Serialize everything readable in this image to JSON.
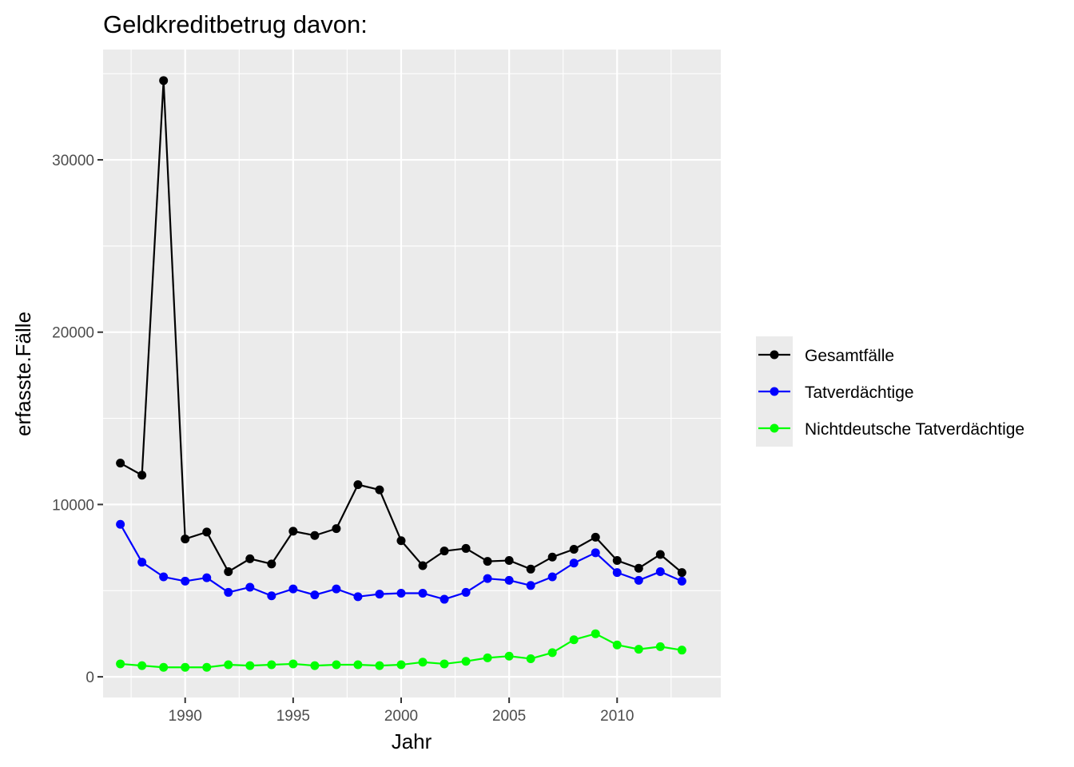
{
  "chart_data": {
    "type": "line",
    "title": "Geldkreditbetrug davon:",
    "xlabel": "Jahr",
    "ylabel": "erfasste.Fälle",
    "x": [
      1987,
      1988,
      1989,
      1990,
      1991,
      1992,
      1993,
      1994,
      1995,
      1996,
      1997,
      1998,
      1999,
      2000,
      2001,
      2002,
      2003,
      2004,
      2005,
      2006,
      2007,
      2008,
      2009,
      2010,
      2011,
      2012,
      2013
    ],
    "xlim": [
      1986.2,
      2014.8
    ],
    "ylim": [
      -1200,
      36400
    ],
    "xticks": [
      1990,
      1995,
      2000,
      2005,
      2010
    ],
    "xtick_labels": [
      "1990",
      "1995",
      "2000",
      "2005",
      "2010"
    ],
    "yticks": [
      0,
      10000,
      20000,
      30000
    ],
    "ytick_labels": [
      "0",
      "10000",
      "20000",
      "30000"
    ],
    "grid": true,
    "legend_position": "right",
    "series": [
      {
        "name": "Gesamtfälle",
        "color": "#000000",
        "values": [
          12400,
          11700,
          34600,
          8000,
          8400,
          6100,
          6850,
          6550,
          8450,
          8200,
          8600,
          11150,
          10850,
          7900,
          6450,
          7300,
          7450,
          6700,
          6750,
          6250,
          6950,
          7400,
          8100,
          6750,
          6300,
          7100,
          6050
        ]
      },
      {
        "name": "Tatverdächtige",
        "color": "#0000ff",
        "values": [
          8850,
          6650,
          5800,
          5550,
          5750,
          4900,
          5200,
          4700,
          5100,
          4750,
          5100,
          4650,
          4800,
          4850,
          4850,
          4500,
          4900,
          5700,
          5600,
          5300,
          5800,
          6600,
          7200,
          6050,
          5600,
          6100,
          5550
        ]
      },
      {
        "name": "Nichtdeutsche Tatverdächtige",
        "color": "#00ff00",
        "values": [
          750,
          650,
          550,
          550,
          550,
          700,
          650,
          700,
          750,
          650,
          700,
          700,
          650,
          700,
          850,
          750,
          900,
          1100,
          1200,
          1050,
          1400,
          2150,
          2500,
          1850,
          1600,
          1750,
          1550
        ]
      }
    ]
  }
}
